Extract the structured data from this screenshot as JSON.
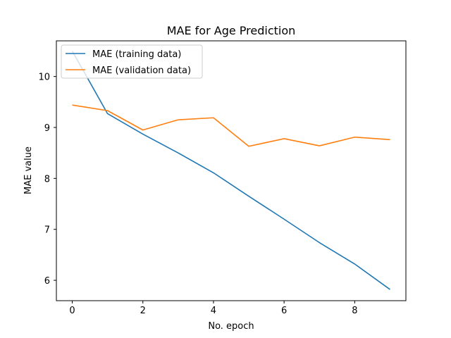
{
  "chart_data": {
    "type": "line",
    "title": "MAE for Age Prediction",
    "xlabel": "No. epoch",
    "ylabel": "MAE value",
    "x": [
      0,
      1,
      2,
      3,
      4,
      5,
      6,
      7,
      8,
      9
    ],
    "xlim": [
      -0.45,
      9.45
    ],
    "ylim": [
      5.6,
      10.7
    ],
    "xticks": [
      0,
      2,
      4,
      6,
      8
    ],
    "yticks": [
      6,
      7,
      8,
      9,
      10
    ],
    "grid": false,
    "legend_position": "top-left",
    "series": [
      {
        "name": "MAE (training data)",
        "color": "#1f77b4",
        "values": [
          10.5,
          9.27,
          8.87,
          8.5,
          8.11,
          7.65,
          7.2,
          6.74,
          6.32,
          5.82
        ]
      },
      {
        "name": "MAE (validation data)",
        "color": "#ff7f0e",
        "values": [
          9.44,
          9.33,
          8.95,
          9.15,
          9.19,
          8.63,
          8.78,
          8.64,
          8.81,
          8.76
        ]
      }
    ]
  }
}
